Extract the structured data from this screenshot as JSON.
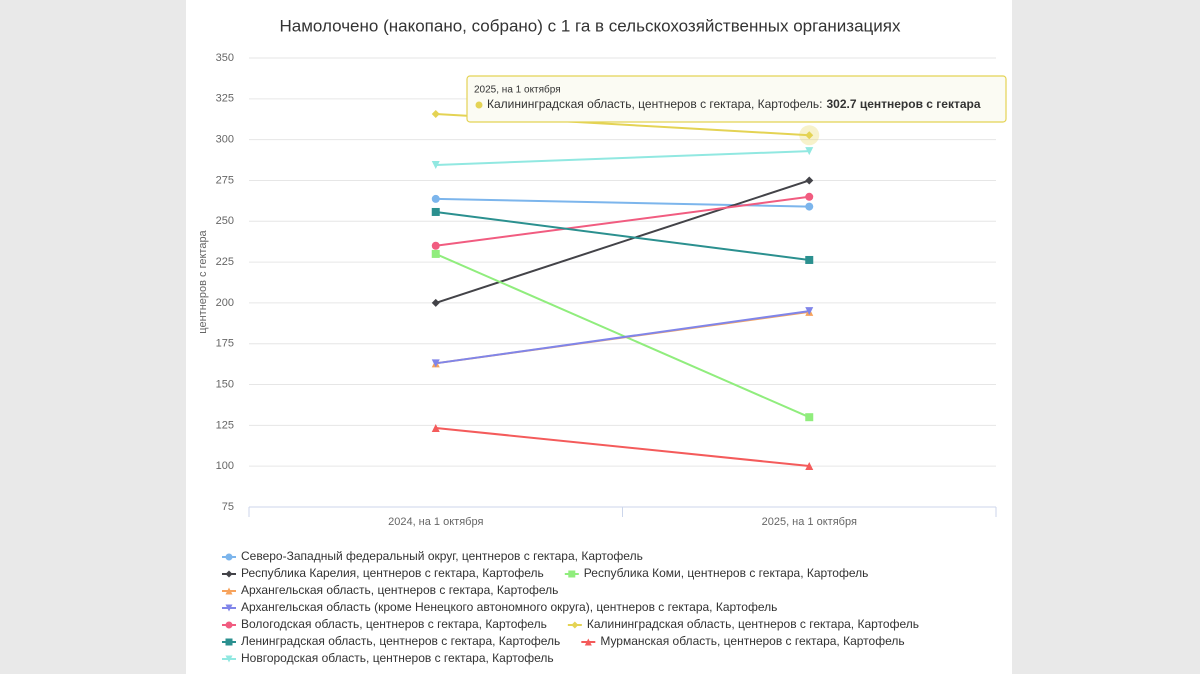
{
  "chart_data": {
    "type": "line",
    "title": "Намолочено (накопано, собрано) с 1 га в сельскохозяйственных организациях",
    "y_label": "центнеров с гектара",
    "categories": [
      "2024, на 1 октября",
      "2025, на 1 октября"
    ],
    "ylim": [
      75,
      350
    ],
    "yticks": [
      75,
      100,
      125,
      150,
      175,
      200,
      225,
      250,
      275,
      300,
      325,
      350
    ],
    "grid": true,
    "series": [
      {
        "name": "Северо-Западный федеральный округ, центнеров с гектара, Картофель",
        "color": "#7cb5ec",
        "symbol": "circle",
        "values": [
          263.7,
          259
        ]
      },
      {
        "name": "Республика Карелия, центнеров с гектара, Картофель",
        "color": "#434348",
        "symbol": "diamond",
        "values": [
          200,
          275
        ]
      },
      {
        "name": "Республика Коми, центнеров с гектара, Картофель",
        "color": "#90ed7d",
        "symbol": "square",
        "values": [
          230,
          130
        ]
      },
      {
        "name": "Архангельская область, центнеров с гектара, Картофель",
        "color": "#f7a35c",
        "symbol": "triangle",
        "values": [
          163,
          194.5
        ]
      },
      {
        "name": "Архангельская область (кроме Ненецкого автономного округа), центнеров с гектара, Картофель",
        "color": "#8085e9",
        "symbol": "triangle-down",
        "values": [
          163,
          195
        ]
      },
      {
        "name": "Вологодская область, центнеров с гектара, Картофель",
        "color": "#f15c80",
        "symbol": "circle",
        "values": [
          235,
          265
        ]
      },
      {
        "name": "Калининградская область, центнеров с гектара, Картофель",
        "color": "#e4d354",
        "symbol": "diamond",
        "values": [
          315.7,
          302.7
        ]
      },
      {
        "name": "Ленинградская область, центнеров с гектара, Картофель",
        "color": "#2b908f",
        "symbol": "square",
        "values": [
          255.7,
          226.3
        ]
      },
      {
        "name": "Мурманская область, центнеров с гектара, Картофель",
        "color": "#f45b5b",
        "symbol": "triangle",
        "values": [
          123.4,
          100.1
        ]
      },
      {
        "name": "Новгородская область, центнеров с гектара, Картофель",
        "color": "#91e8e1",
        "symbol": "triangle-down",
        "values": [
          284.5,
          293
        ]
      }
    ],
    "tooltip": {
      "header": "2025, на 1 октября",
      "text": "Калининградская область, центнеров с гектара, Картофель:",
      "value": "302.7 центнеров с гектара"
    }
  }
}
